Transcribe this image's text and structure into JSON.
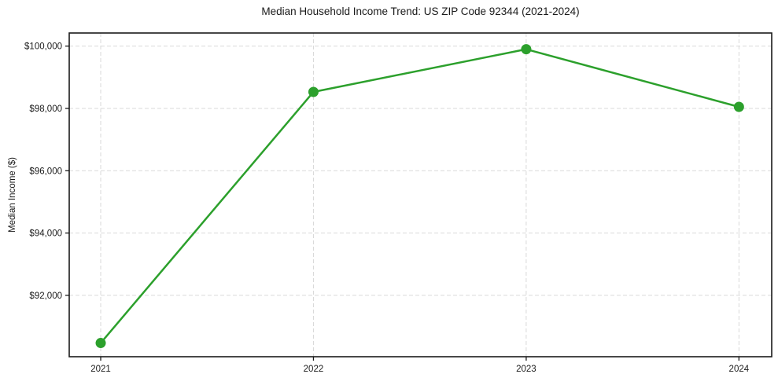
{
  "chart_data": {
    "type": "line",
    "title": "Median Household Income Trend: US ZIP Code 92344 (2021-2024)",
    "xlabel": "",
    "ylabel": "Median Income ($)",
    "x": [
      2021,
      2022,
      2023,
      2024
    ],
    "series": [
      {
        "name": "Median Household Income",
        "values": [
          90470,
          98530,
          99900,
          98050
        ]
      }
    ],
    "xticks": [
      2021,
      2022,
      2023,
      2024
    ],
    "xtick_labels": [
      "2021",
      "2022",
      "2023",
      "2024"
    ],
    "yticks": [
      92000,
      94000,
      96000,
      98000,
      100000
    ],
    "ytick_labels": [
      "$92,000",
      "$94,000",
      "$96,000",
      "$98,000",
      "$100,000"
    ],
    "xlim": [
      2020.852,
      2024.154
    ],
    "ylim": [
      90030,
      100421
    ],
    "grid": true,
    "legend_position": "none",
    "colors": {
      "line": "#2ca02c",
      "marker": "#2ca02c",
      "grid": "#d9d9d9",
      "spine": "#1a1a1a",
      "tick": "#1a1a1a",
      "background": "#ffffff"
    },
    "line_width": 2.5,
    "marker_radius": 6.5
  }
}
